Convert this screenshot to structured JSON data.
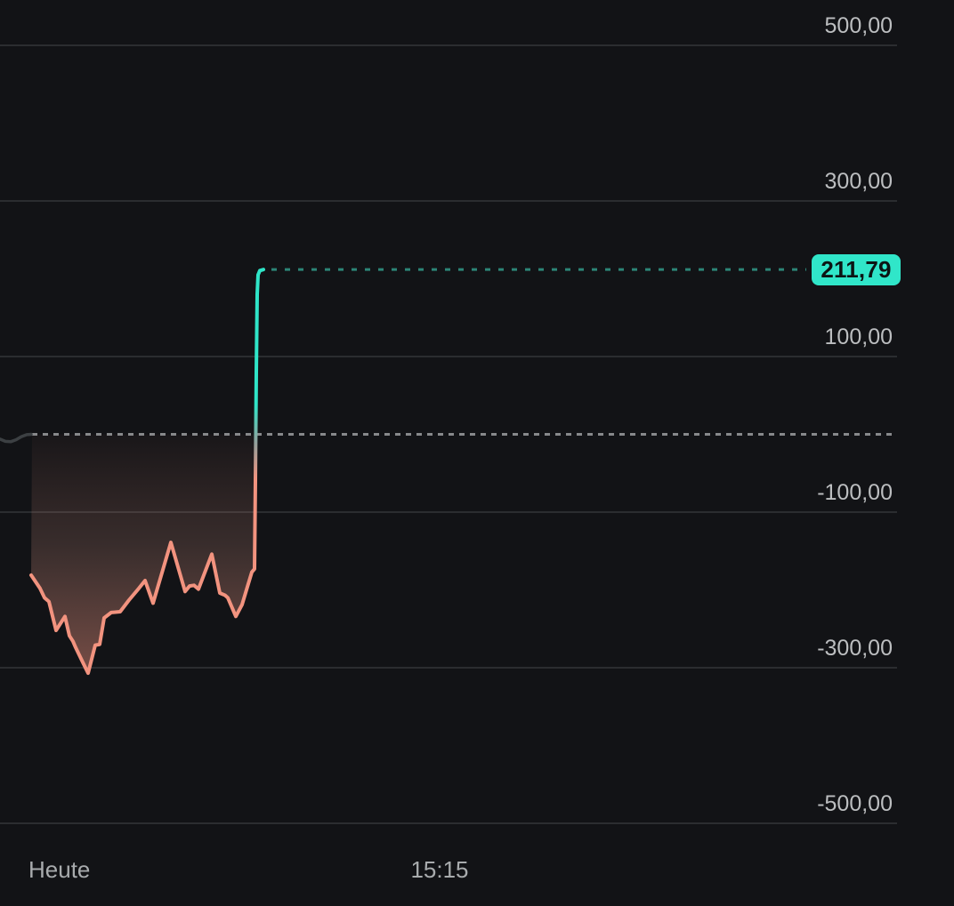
{
  "colors": {
    "background": "#121316",
    "grid_line": "#2b2d30",
    "y_axis_label": "#bcbec0",
    "x_axis_label": "#a8abad",
    "line_negative": "#f2937f",
    "line_positive": "#2fe5c8",
    "pre_open_line": "#3c4043",
    "baseline_dash": "#87898b",
    "target_dash": "#2c8577",
    "badge_background": "#30e6c9",
    "badge_text": "#0c1514"
  },
  "chart_data": {
    "type": "area-line",
    "title": "Intraday profit/loss line chart (dark theme)",
    "legend": "none",
    "grid": "horizontal-only",
    "y_axis": {
      "ticks": [
        "500,00",
        "300,00",
        "100,00",
        "-100,00",
        "-300,00",
        "-500,00"
      ],
      "tick_values": [
        500,
        300,
        100,
        -100,
        -300,
        -500
      ],
      "range": [
        -550,
        550
      ]
    },
    "x_axis": {
      "left_label": "Heute",
      "center_label": "15:15"
    },
    "baseline_value": 0,
    "current_value": 211.79,
    "current_value_label": "211,79",
    "pre_open_points": [
      [
        0,
        -6
      ],
      [
        6,
        -9
      ],
      [
        12,
        -9.5
      ],
      [
        18,
        -7
      ],
      [
        24,
        -3
      ],
      [
        30,
        -0.5
      ],
      [
        35,
        0
      ]
    ],
    "points": [
      [
        35,
        -181
      ],
      [
        45,
        -198
      ],
      [
        50,
        -210
      ],
      [
        55,
        -215
      ],
      [
        63,
        -252
      ],
      [
        73,
        -234
      ],
      [
        78,
        -259
      ],
      [
        82,
        -266
      ],
      [
        85,
        -274
      ],
      [
        93,
        -293
      ],
      [
        99,
        -307
      ],
      [
        107,
        -271
      ],
      [
        112,
        -270
      ],
      [
        117,
        -236
      ],
      [
        125,
        -229
      ],
      [
        135,
        -228
      ],
      [
        145,
        -213
      ],
      [
        156,
        -198
      ],
      [
        163,
        -188
      ],
      [
        172,
        -217
      ],
      [
        192,
        -139
      ],
      [
        208,
        -202
      ],
      [
        213,
        -195
      ],
      [
        218,
        -194
      ],
      [
        223,
        -199
      ],
      [
        238,
        -154
      ],
      [
        247,
        -204
      ],
      [
        253,
        -207
      ],
      [
        256,
        -210
      ],
      [
        265,
        -234
      ],
      [
        272,
        -219
      ],
      [
        278,
        -196
      ],
      [
        283,
        -177
      ],
      [
        286,
        -173
      ],
      [
        287,
        -60
      ],
      [
        288,
        80
      ],
      [
        289,
        180
      ],
      [
        290,
        205
      ],
      [
        292,
        210.5
      ],
      [
        296,
        211.79
      ]
    ]
  }
}
